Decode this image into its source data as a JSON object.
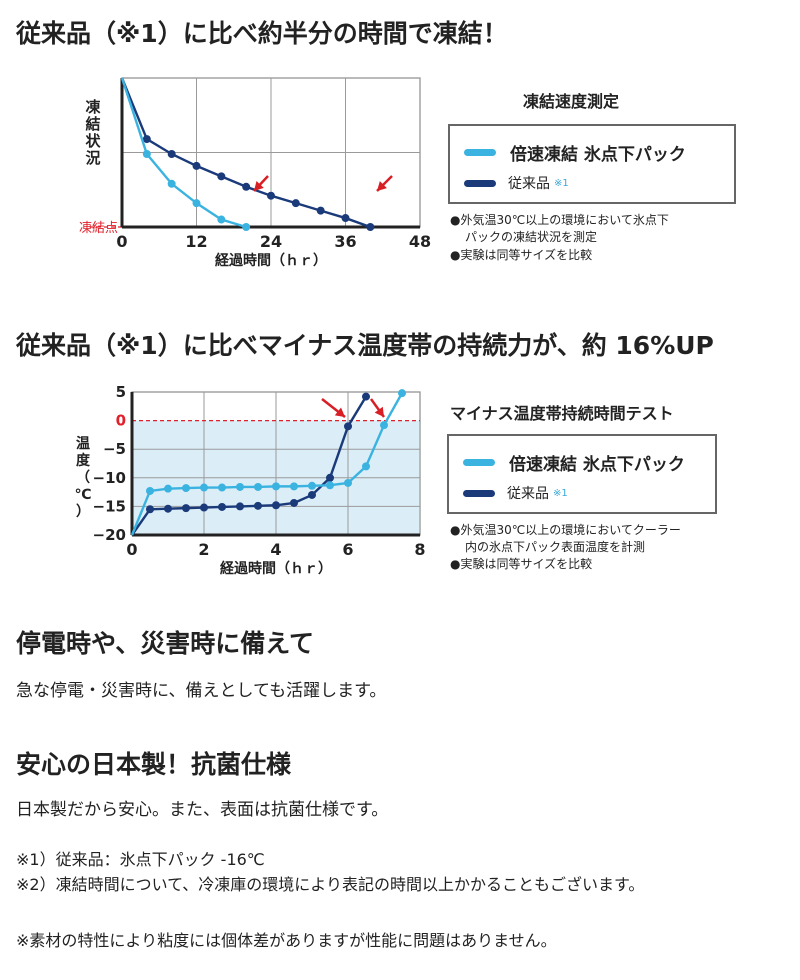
{
  "headings": {
    "h1": "従来品（※1）に比べ約半分の時間で凍結！",
    "h2": "従来品（※1）に比べマイナス温度帯の持続力が、約 16%UP",
    "h3": "停電時や、災害時に備えて",
    "h4": "安心の日本製！抗菌仕様"
  },
  "texts": {
    "t3": "急な停電・災害時に、備えとしても活躍します。",
    "t4": "日本製だから安心。また、表面は抗菌仕様です。",
    "note1": "※1）従来品：氷点下パック -16℃",
    "note2": "※2）凍結時間について、冷凍庫の環境により表記の時間以上かかることもございます。",
    "note3": "※素材の特性により粘度には個体差がありますが性能に問題はありません。"
  },
  "colors": {
    "fast": "#3bb3e0",
    "conventional": "#1a3a7a",
    "arrow": "#d81f26",
    "zone": "#dbeef8",
    "dash": "#e0202a"
  },
  "chart_data": [
    {
      "type": "line",
      "title": "凍結速度測定",
      "xlabel": "経過時間（ｈｒ）",
      "ylabel": "凍結状況",
      "threshold_label": "凍結点",
      "xlim": [
        0,
        48
      ],
      "xticks": [
        0,
        12,
        24,
        36,
        48
      ],
      "ylim": [
        0,
        1
      ],
      "threshold": 0.0,
      "series": [
        {
          "name": "倍速凍結 氷点下パック",
          "note": "",
          "color_key": "fast",
          "x": [
            0,
            4,
            8,
            12,
            16,
            20
          ],
          "y": [
            1.0,
            0.49,
            0.29,
            0.16,
            0.05,
            0.0
          ]
        },
        {
          "name": "従来品",
          "note": "※1",
          "color_key": "conventional",
          "x": [
            0,
            4,
            8,
            12,
            16,
            20,
            24,
            28,
            32,
            36,
            40
          ],
          "y": [
            1.0,
            0.59,
            0.49,
            0.41,
            0.34,
            0.27,
            0.21,
            0.16,
            0.11,
            0.06,
            0.0
          ]
        }
      ],
      "bullets": [
        "●外気温30℃以上の環境において氷点下",
        "パックの凍結状況を測定",
        "●実験は同等サイズを比較"
      ]
    },
    {
      "type": "line",
      "title": "マイナス温度帯持続時間テスト",
      "xlabel": "経過時間（ｈｒ）",
      "ylabel": "温度（℃）",
      "xlim": [
        0,
        8
      ],
      "xticks": [
        0,
        2,
        4,
        6,
        8
      ],
      "ylim": [
        -20,
        5
      ],
      "yticks": [
        5,
        0,
        -5,
        -10,
        -15,
        -20
      ],
      "threshold": 0,
      "series": [
        {
          "name": "倍速凍結 氷点下パック",
          "note": "",
          "color_key": "fast",
          "x": [
            0,
            0.5,
            1,
            1.5,
            2,
            2.5,
            3,
            3.5,
            4,
            4.5,
            5,
            5.5,
            6,
            6.5,
            7,
            7.5
          ],
          "y": [
            -20,
            -12.3,
            -11.9,
            -11.8,
            -11.7,
            -11.7,
            -11.6,
            -11.6,
            -11.5,
            -11.5,
            -11.4,
            -11.3,
            -10.9,
            -8.0,
            -0.8,
            4.8
          ]
        },
        {
          "name": "従来品",
          "note": "※1",
          "color_key": "conventional",
          "x": [
            0,
            0.5,
            1,
            1.5,
            2,
            2.5,
            3,
            3.5,
            4,
            4.5,
            5,
            5.5,
            6,
            6.5
          ],
          "y": [
            -20,
            -15.5,
            -15.4,
            -15.3,
            -15.2,
            -15.1,
            -15.0,
            -14.9,
            -14.8,
            -14.4,
            -13.0,
            -10.0,
            -1.0,
            4.2
          ]
        }
      ],
      "bullets": [
        "●外気温30℃以上の環境においてクーラー",
        "内の氷点下パック表面温度を計測",
        "●実験は同等サイズを比較"
      ]
    }
  ]
}
